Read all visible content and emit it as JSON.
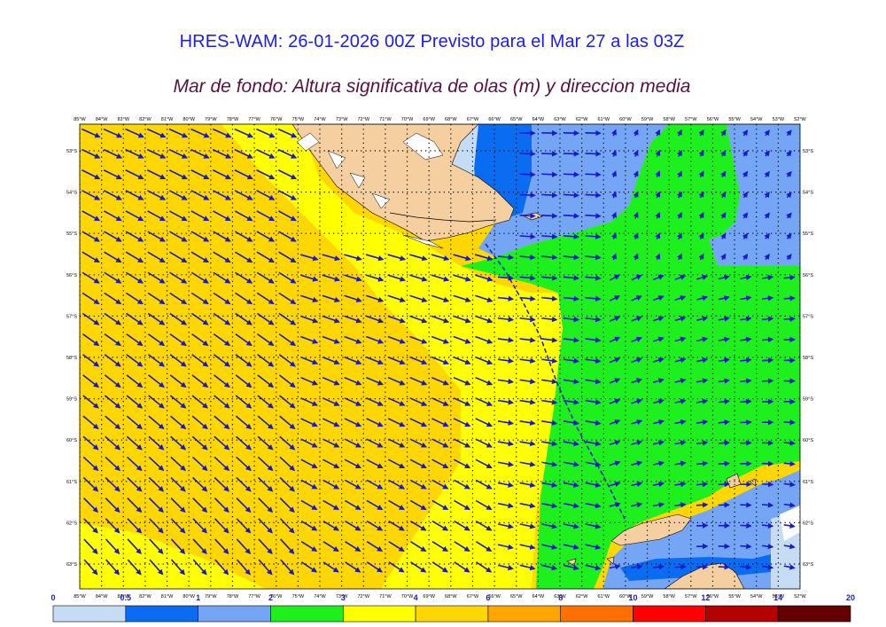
{
  "header": {
    "title": "HRES-WAM: 26-01-2026 00Z Previsto para el Mar 27 a las 03Z",
    "subtitle": "Mar de fondo: Altura significativa de olas (m) y direccion media"
  },
  "map": {
    "lon_labels": [
      "85°W",
      "84°W",
      "83°W",
      "82°W",
      "81°W",
      "80°W",
      "79°W",
      "78°W",
      "77°W",
      "76°W",
      "75°W",
      "74°W",
      "73°W",
      "72°W",
      "71°W",
      "70°W",
      "69°W",
      "68°W",
      "67°W",
      "66°W",
      "65°W",
      "64°W",
      "63°W",
      "62°W",
      "61°W",
      "60°W",
      "59°W",
      "58°W",
      "57°W",
      "56°W",
      "55°W",
      "54°W",
      "53°W",
      "52°W"
    ],
    "lat_labels": [
      "53°S",
      "54°S",
      "55°S",
      "56°S",
      "57°S",
      "58°S",
      "59°S",
      "60°S",
      "61°S",
      "62°S",
      "63°S"
    ],
    "colors": {
      "land": "#f5cfa0",
      "arrow": "#1a1acc",
      "dotted_grid": "#000000"
    }
  },
  "legend": {
    "ticks": [
      "0",
      "0.5",
      "1",
      "2",
      "3",
      "4",
      "6",
      "8",
      "10",
      "12",
      "14",
      "20"
    ],
    "colors": [
      "#c6dcf5",
      "#0a6cf0",
      "#75a6f5",
      "#1ef01e",
      "#ffff00",
      "#ffd700",
      "#ffa500",
      "#ff7000",
      "#ff0000",
      "#b40000",
      "#640000",
      "#3c3c3c"
    ]
  }
}
